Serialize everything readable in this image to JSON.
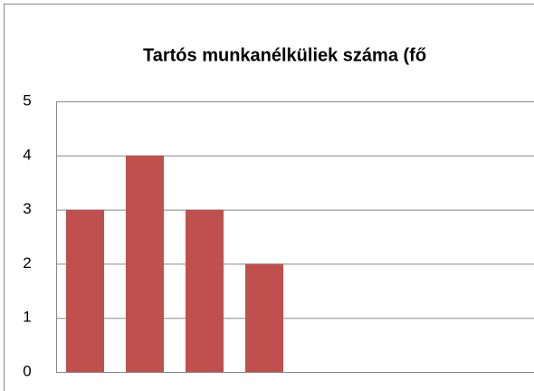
{
  "chart_data": {
    "type": "bar",
    "title": "Tartós munkanélküliek száma (fő",
    "categories": [
      null,
      null,
      null,
      null
    ],
    "values": [
      3,
      4,
      3,
      2
    ],
    "color": "#c0504d",
    "ylim": [
      0,
      5
    ],
    "yticks": [
      0,
      1,
      2,
      3,
      4,
      5
    ],
    "grid": true
  }
}
